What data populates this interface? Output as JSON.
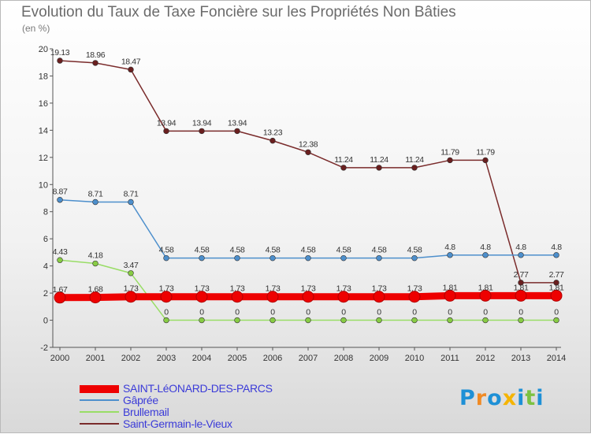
{
  "title": "Evolution du Taux de Taxe Foncière sur les Propriétés Non Bâties",
  "unit_label": "(en %)",
  "logo": {
    "letters": [
      "P",
      "r",
      "o",
      "x",
      "i",
      "t",
      "i"
    ],
    "colors": [
      "#1e90d6",
      "#f08a24",
      "#1e90d6",
      "#f5b400",
      "#1e90d6",
      "#7cc242",
      "#1e90d6"
    ]
  },
  "chart_data": {
    "type": "line",
    "title": "Evolution du Taux de Taxe Foncière sur les Propriétés Non Bâties",
    "ylabel": "(en %)",
    "ylim": [
      -2,
      20
    ],
    "yticks": [
      -2,
      0,
      2,
      4,
      6,
      8,
      10,
      12,
      14,
      16,
      18,
      20
    ],
    "x": [
      "2000",
      "2001",
      "2002",
      "2003",
      "2004",
      "2005",
      "2006",
      "2007",
      "2008",
      "2009",
      "2010",
      "2011",
      "2012",
      "2013",
      "2014"
    ],
    "series": [
      {
        "name": "SAINT-LéONARD-DES-PARCS",
        "color": "#ee0000",
        "marker": "#ee0000",
        "values": [
          1.67,
          1.68,
          1.73,
          1.73,
          1.73,
          1.73,
          1.73,
          1.73,
          1.73,
          1.73,
          1.73,
          1.81,
          1.81,
          1.81,
          1.81
        ],
        "labels": [
          "1.67",
          "1.68",
          "1.73",
          "1.73",
          "1.73",
          "1.73",
          "1.73",
          "1.73",
          "1.73",
          "1.73",
          "1.73",
          "1.81",
          "1.81",
          "1.81",
          "1.81"
        ]
      },
      {
        "name": "Gâprée",
        "color": "#4d8fcc",
        "marker": "#4d8fcc",
        "values": [
          8.87,
          8.71,
          8.71,
          4.58,
          4.58,
          4.58,
          4.58,
          4.58,
          4.58,
          4.58,
          4.58,
          4.8,
          4.8,
          4.8,
          4.8
        ],
        "labels": [
          "8.87",
          "8.71",
          "8.71",
          "4.58",
          "4.58",
          "4.58",
          "4.58",
          "4.58",
          "4.58",
          "4.58",
          "4.58",
          "4.8",
          "4.8",
          "4.8",
          "4.8"
        ]
      },
      {
        "name": "Brullemail",
        "color": "#99dd66",
        "marker": "#88cc44",
        "values": [
          4.43,
          4.18,
          3.47,
          0,
          0,
          0,
          0,
          0,
          0,
          0,
          0,
          0,
          0,
          0,
          0
        ],
        "labels": [
          "4.43",
          "4.18",
          "3.47",
          "0",
          "0",
          "0",
          "0",
          "0",
          "0",
          "0",
          "0",
          "0",
          "0",
          "0",
          "0"
        ]
      },
      {
        "name": "Saint-Germain-le-Vieux",
        "color": "#7a2b2b",
        "marker": "#6a1f1f",
        "values": [
          19.13,
          18.96,
          18.47,
          13.94,
          13.94,
          13.94,
          13.23,
          12.38,
          11.24,
          11.24,
          11.24,
          11.79,
          11.79,
          2.77,
          2.77
        ],
        "labels": [
          "19.13",
          "18.96",
          "18.47",
          "13.94",
          "13.94",
          "13.94",
          "13.23",
          "12.38",
          "11.24",
          "11.24",
          "11.24",
          "11.79",
          "11.79",
          "2.77",
          "2.77"
        ]
      }
    ]
  }
}
